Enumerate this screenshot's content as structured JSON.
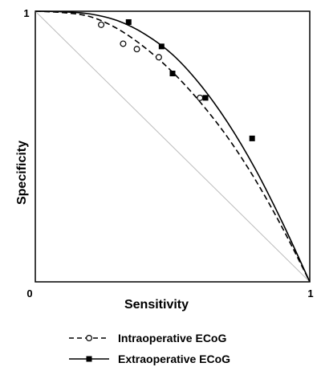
{
  "chart_data": {
    "type": "line",
    "title": "",
    "xlabel": "Sensitivity",
    "ylabel": "Specificity",
    "xlim": [
      0,
      1
    ],
    "ylim": [
      0,
      1
    ],
    "x_ticks": [
      "0",
      "1"
    ],
    "y_ticks": [
      "0",
      "1"
    ],
    "grid": false,
    "legend_position": "bottom",
    "series": [
      {
        "name": "Intraoperative ECoG",
        "line_style": "dashed",
        "marker": "open-circle",
        "color": "#000000",
        "points": [
          {
            "x": 0.24,
            "y": 0.95
          },
          {
            "x": 0.32,
            "y": 0.88
          },
          {
            "x": 0.37,
            "y": 0.86
          },
          {
            "x": 0.45,
            "y": 0.83
          },
          {
            "x": 0.6,
            "y": 0.68
          }
        ],
        "curve": [
          {
            "x": 0.0,
            "y": 1.0
          },
          {
            "x": 0.1,
            "y": 0.995
          },
          {
            "x": 0.2,
            "y": 0.98
          },
          {
            "x": 0.3,
            "y": 0.935
          },
          {
            "x": 0.4,
            "y": 0.865
          },
          {
            "x": 0.5,
            "y": 0.775
          },
          {
            "x": 0.6,
            "y": 0.665
          },
          {
            "x": 0.7,
            "y": 0.535
          },
          {
            "x": 0.8,
            "y": 0.38
          },
          {
            "x": 0.9,
            "y": 0.2
          },
          {
            "x": 1.0,
            "y": 0.0
          }
        ]
      },
      {
        "name": "Extraoperative ECoG",
        "line_style": "solid",
        "marker": "filled-square",
        "color": "#000000",
        "points": [
          {
            "x": 0.34,
            "y": 0.96
          },
          {
            "x": 0.46,
            "y": 0.87
          },
          {
            "x": 0.5,
            "y": 0.77
          },
          {
            "x": 0.62,
            "y": 0.68
          },
          {
            "x": 0.79,
            "y": 0.53
          }
        ],
        "curve": [
          {
            "x": 0.0,
            "y": 1.0
          },
          {
            "x": 0.1,
            "y": 0.998
          },
          {
            "x": 0.2,
            "y": 0.99
          },
          {
            "x": 0.3,
            "y": 0.965
          },
          {
            "x": 0.4,
            "y": 0.915
          },
          {
            "x": 0.5,
            "y": 0.84
          },
          {
            "x": 0.6,
            "y": 0.73
          },
          {
            "x": 0.7,
            "y": 0.59
          },
          {
            "x": 0.8,
            "y": 0.42
          },
          {
            "x": 0.9,
            "y": 0.22
          },
          {
            "x": 1.0,
            "y": 0.0
          }
        ]
      }
    ],
    "reference_line": {
      "from": [
        0,
        1
      ],
      "to": [
        1,
        0
      ],
      "color": "#bbbbbb"
    }
  }
}
